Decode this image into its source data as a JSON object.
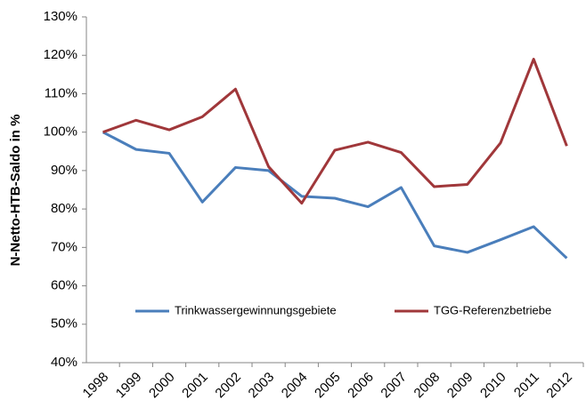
{
  "chart_data": {
    "type": "line",
    "y_label": "N-Netto-HTB-Saldo in %",
    "categories": [
      "1998",
      "1999",
      "2000",
      "2001",
      "2002",
      "2003",
      "2004",
      "2005",
      "2006",
      "2007",
      "2008",
      "2009",
      "2010",
      "2011",
      "2012"
    ],
    "series": [
      {
        "name": "Trinkwassergewinnungsgebiete",
        "color": "#4a7ebb",
        "values": [
          100,
          95.5,
          94.5,
          81.8,
          90.8,
          90.0,
          83.3,
          82.8,
          80.6,
          85.6,
          70.4,
          68.7,
          72.0,
          75.4,
          67.2
        ]
      },
      {
        "name": "TGG-Referenzbetriebe",
        "color": "#a0373a",
        "values": [
          100,
          103.1,
          100.6,
          104.0,
          111.2,
          91.0,
          81.5,
          95.3,
          97.4,
          94.7,
          85.8,
          86.4,
          97.2,
          119.0,
          96.4
        ]
      }
    ],
    "ylim": [
      40,
      130
    ],
    "yticks": [
      {
        "value": 40,
        "label": "40%"
      },
      {
        "value": 50,
        "label": "50%"
      },
      {
        "value": 60,
        "label": "60%"
      },
      {
        "value": 70,
        "label": "70%"
      },
      {
        "value": 80,
        "label": "80%"
      },
      {
        "value": 90,
        "label": "90%"
      },
      {
        "value": 100,
        "label": "100%"
      },
      {
        "value": 110,
        "label": "110%"
      },
      {
        "value": 120,
        "label": "120%"
      },
      {
        "value": 130,
        "label": "130%"
      }
    ],
    "grid": false
  }
}
